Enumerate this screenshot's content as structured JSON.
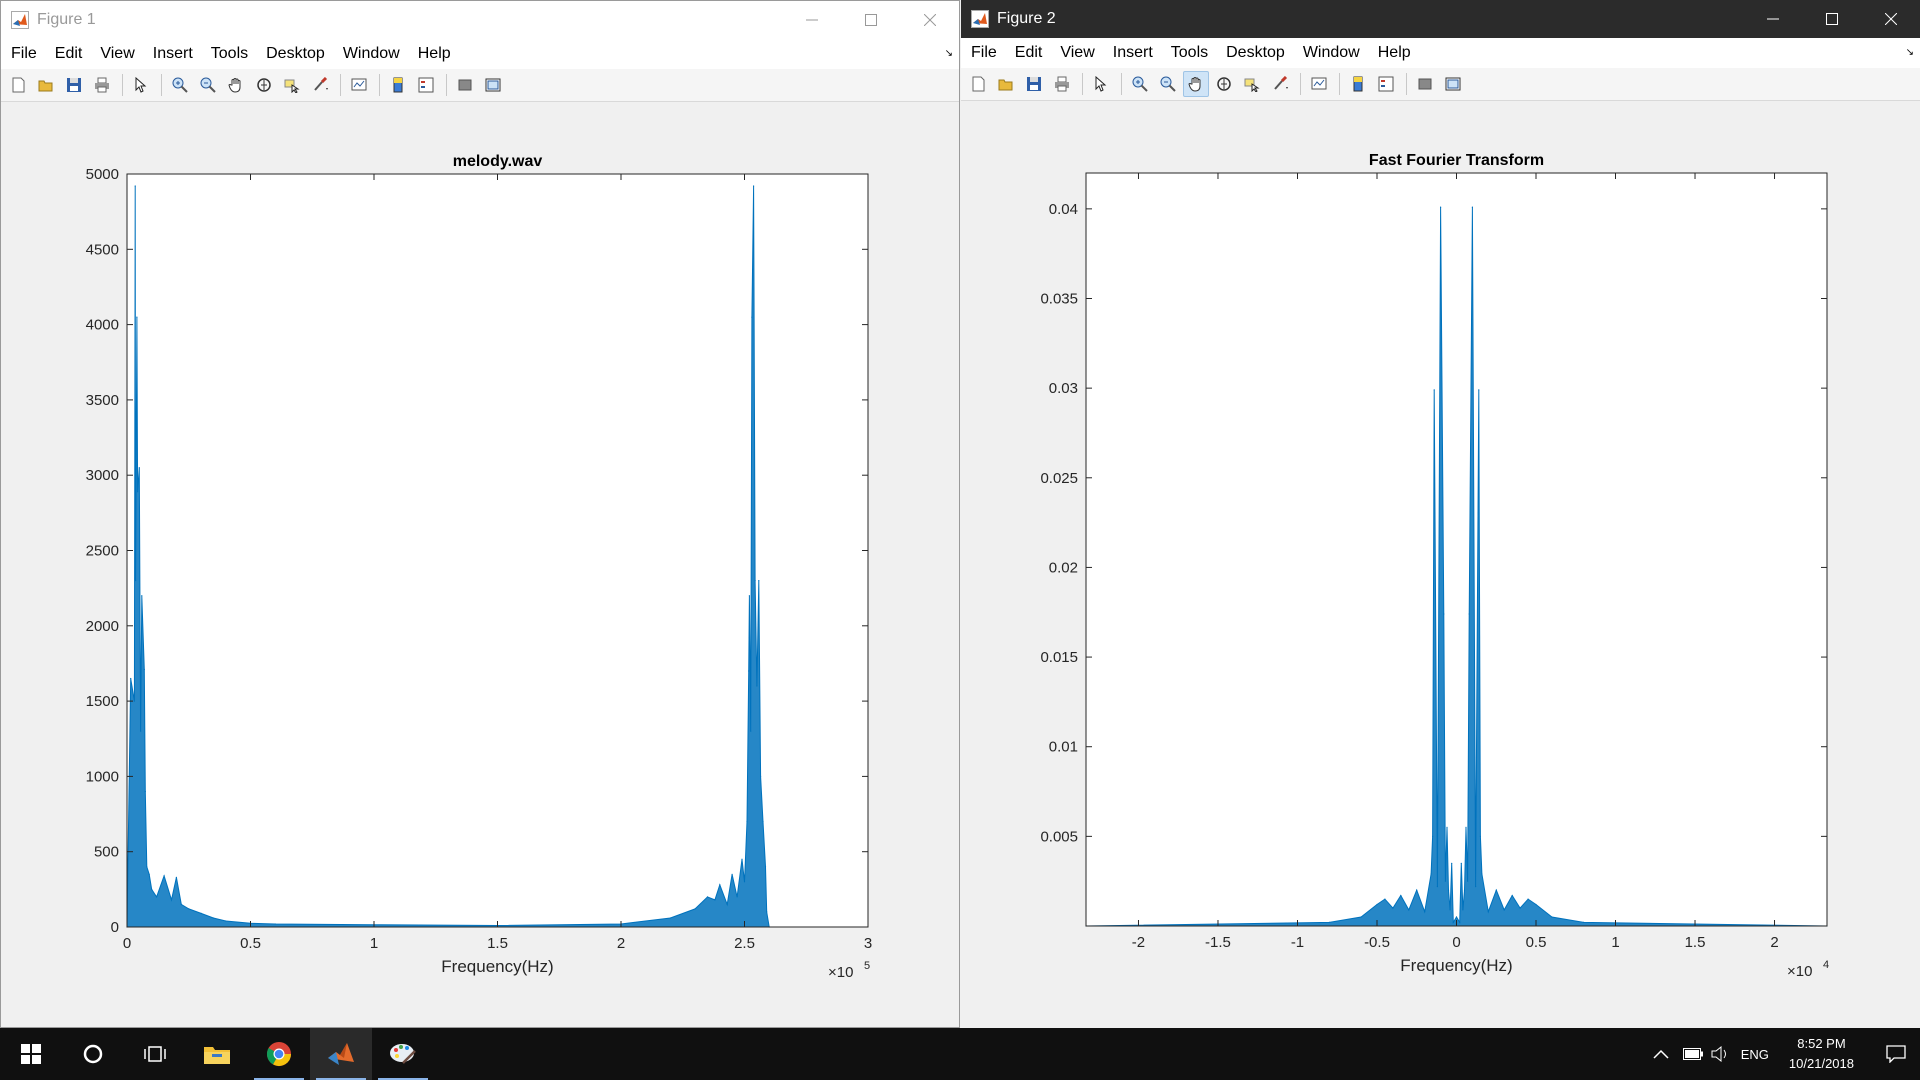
{
  "windows": [
    {
      "title": "Figure 1",
      "menu": [
        "File",
        "Edit",
        "View",
        "Insert",
        "Tools",
        "Desktop",
        "Window",
        "Help"
      ],
      "toolbar": [
        "new-figure-icon",
        "open-file-icon",
        "save-icon",
        "print-icon",
        "|",
        "edit-plot-icon",
        "|",
        "zoom-in-icon",
        "zoom-out-icon",
        "pan-hand-icon",
        "rotate-3d-icon",
        "data-cursor-icon",
        "brush-icon",
        "|",
        "link-plot-icon",
        "|",
        "colorbar-icon",
        "legend-icon",
        "|",
        "hide-plot-tools-icon",
        "show-plot-tools-icon"
      ],
      "active_tool": ""
    },
    {
      "title": "Figure 2",
      "menu": [
        "File",
        "Edit",
        "View",
        "Insert",
        "Tools",
        "Desktop",
        "Window",
        "Help"
      ],
      "toolbar": [
        "new-figure-icon",
        "open-file-icon",
        "save-icon",
        "print-icon",
        "|",
        "edit-plot-icon",
        "|",
        "zoom-in-icon",
        "zoom-out-icon",
        "pan-hand-icon",
        "rotate-3d-icon",
        "data-cursor-icon",
        "brush-icon",
        "|",
        "link-plot-icon",
        "|",
        "colorbar-icon",
        "legend-icon",
        "|",
        "hide-plot-tools-icon",
        "show-plot-tools-icon"
      ],
      "active_tool": "pan-hand-icon"
    }
  ],
  "chart_data": [
    {
      "type": "line",
      "title": "melody.wav",
      "xlabel": "Frequency(Hz)",
      "ylabel": "",
      "xlim": [
        0,
        300000
      ],
      "ylim": [
        0,
        5000
      ],
      "x_exponent_label": "×10",
      "x_exponent": "5",
      "xticks": [
        0,
        50000,
        100000,
        150000,
        200000,
        250000,
        300000
      ],
      "xtick_labels": [
        "0",
        "0.5",
        "1",
        "1.5",
        "2",
        "2.5",
        "3"
      ],
      "yticks": [
        0,
        500,
        1000,
        1500,
        2000,
        2500,
        3000,
        3500,
        4000,
        4500,
        5000
      ],
      "ytick_labels": [
        "0",
        "500",
        "1000",
        "1500",
        "2000",
        "2500",
        "3000",
        "3500",
        "4000",
        "4500",
        "5000"
      ],
      "series_color": "#0072bd",
      "series": [
        {
          "x": [
            0,
            1500,
            3000,
            3300,
            3500,
            4000,
            4300,
            5000,
            5500,
            6000,
            7000,
            7400,
            8000,
            9000,
            10000,
            12000,
            15000,
            18000,
            20000,
            22000,
            25000,
            30000,
            35000,
            40000,
            50000,
            60000,
            100000,
            150000,
            200000,
            220000,
            230000,
            235000,
            238000,
            240000,
            243000,
            245000,
            247000,
            249000,
            250000,
            251000,
            251700,
            252000,
            252500,
            253000,
            253700,
            254300,
            255000,
            255800,
            256500,
            257500,
            258500,
            259000,
            260000
          ],
          "y": [
            0,
            1650,
            1500,
            4920,
            2300,
            4050,
            2890,
            3050,
            1300,
            2200,
            1710,
            900,
            400,
            350,
            250,
            200,
            340,
            180,
            330,
            150,
            120,
            90,
            60,
            40,
            25,
            20,
            15,
            10,
            20,
            60,
            120,
            200,
            180,
            280,
            150,
            350,
            200,
            450,
            300,
            700,
            1700,
            2200,
            1300,
            4050,
            4920,
            2300,
            1600,
            2300,
            1000,
            700,
            400,
            100,
            0
          ]
        }
      ]
    },
    {
      "type": "line",
      "title": "Fast Fourier Transform",
      "xlabel": "Frequency(Hz)",
      "ylabel": "",
      "xlim": [
        -23300,
        23300
      ],
      "ylim": [
        0,
        0.042
      ],
      "x_exponent_label": "×10",
      "x_exponent": "4",
      "xticks": [
        -20000,
        -15000,
        -10000,
        -5000,
        0,
        5000,
        10000,
        15000,
        20000
      ],
      "xtick_labels": [
        "-2",
        "-1.5",
        "-1",
        "-0.5",
        "0",
        "0.5",
        "1",
        "1.5",
        "2"
      ],
      "yticks": [
        0.005,
        0.01,
        0.015,
        0.02,
        0.025,
        0.03,
        0.035,
        0.04
      ],
      "ytick_labels": [
        "0.005",
        "0.01",
        "0.015",
        "0.02",
        "0.025",
        "0.03",
        "0.035",
        "0.04"
      ],
      "series_color": "#0072bd",
      "series": [
        {
          "x": [
            -23300,
            -8000,
            -6000,
            -5000,
            -4500,
            -4000,
            -3500,
            -3000,
            -2500,
            -2000,
            -1600,
            -1500,
            -1400,
            -1200,
            -1000,
            -800,
            -700,
            -600,
            -500,
            -400,
            -300,
            -200,
            0,
            200,
            300,
            400,
            500,
            600,
            700,
            800,
            1000,
            1200,
            1400,
            1500,
            1600,
            2000,
            2500,
            3000,
            3500,
            4000,
            4500,
            5000,
            6000,
            8000,
            23300
          ],
          "y": [
            0,
            0.0002,
            0.0005,
            0.0012,
            0.0015,
            0.001,
            0.0017,
            0.0009,
            0.002,
            0.0008,
            0.0029,
            0.005,
            0.0299,
            0.0022,
            0.0401,
            0.0174,
            0.0025,
            0.0055,
            0.002,
            0.0009,
            0.0035,
            0.0002,
            0.0005,
            0.0002,
            0.0035,
            0.0009,
            0.002,
            0.0055,
            0.0025,
            0.0174,
            0.0401,
            0.0022,
            0.0299,
            0.005,
            0.0029,
            0.0008,
            0.002,
            0.0009,
            0.0017,
            0.001,
            0.0015,
            0.0012,
            0.0005,
            0.0002,
            0
          ]
        }
      ]
    }
  ],
  "taskbar": {
    "items": [
      "start-windows-icon",
      "cortana-circle-icon",
      "task-view-icon",
      "file-explorer-icon",
      "chrome-icon",
      "matlab-icon",
      "paint-icon"
    ],
    "running": [
      "chrome-icon",
      "matlab-icon",
      "paint-icon"
    ],
    "tray": {
      "language": "ENG",
      "time": "8:52 PM",
      "date": "10/21/2018"
    }
  }
}
